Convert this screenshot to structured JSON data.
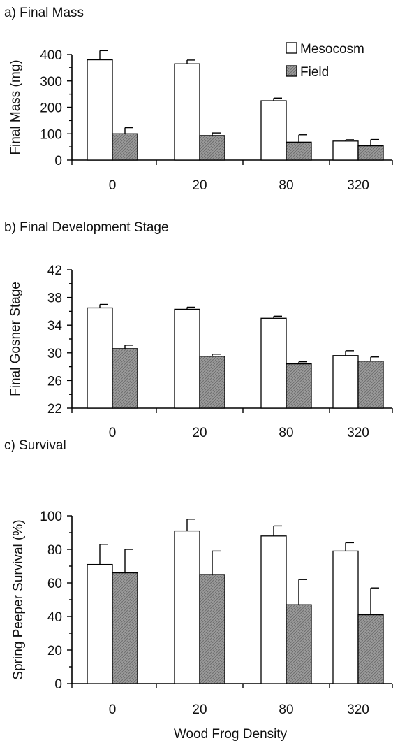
{
  "colors": {
    "mesocosm_fill": "#ffffff",
    "field_fill": "#9a9a9a",
    "outline": "#000000"
  },
  "xlabel": "Wood Frog Density",
  "chart_data": [
    {
      "type": "bar",
      "title": "a) Final Mass",
      "ylabel": "Final Mass (mg)",
      "categories": [
        "0",
        "20",
        "80",
        "320"
      ],
      "ylim": [
        0,
        400
      ],
      "yticks": [
        0,
        100,
        200,
        300,
        400
      ],
      "legend": {
        "placement": "top-right",
        "entries": [
          "Mesocosm",
          "Field"
        ]
      },
      "series": [
        {
          "name": "Mesocosm",
          "values": [
            380,
            365,
            225,
            72
          ],
          "errors": [
            35,
            14,
            10,
            5
          ]
        },
        {
          "name": "Field",
          "values": [
            100,
            93,
            68,
            54
          ],
          "errors": [
            23,
            10,
            28,
            24
          ]
        }
      ]
    },
    {
      "type": "bar",
      "title": "b) Final Development Stage",
      "ylabel": "Final Gosner Stage",
      "categories": [
        "0",
        "20",
        "80",
        "320"
      ],
      "ylim": [
        22,
        42
      ],
      "yticks": [
        22,
        26,
        30,
        34,
        38,
        42
      ],
      "series": [
        {
          "name": "Mesocosm",
          "values": [
            36.5,
            36.3,
            35.0,
            29.6
          ],
          "errors": [
            0.5,
            0.3,
            0.3,
            0.7
          ]
        },
        {
          "name": "Field",
          "values": [
            30.6,
            29.5,
            28.4,
            28.8
          ],
          "errors": [
            0.5,
            0.3,
            0.3,
            0.6
          ]
        }
      ]
    },
    {
      "type": "bar",
      "title": "c) Survival",
      "ylabel": "Spring Peeper Survival (%)",
      "categories": [
        "0",
        "20",
        "80",
        "320"
      ],
      "ylim": [
        0,
        100
      ],
      "yticks": [
        0,
        20,
        40,
        60,
        80,
        100
      ],
      "series": [
        {
          "name": "Mesocosm",
          "values": [
            71,
            91,
            88,
            79
          ],
          "errors": [
            12,
            7,
            6,
            5
          ]
        },
        {
          "name": "Field",
          "values": [
            66,
            65,
            47,
            41
          ],
          "errors": [
            14,
            14,
            15,
            16
          ]
        }
      ]
    }
  ]
}
